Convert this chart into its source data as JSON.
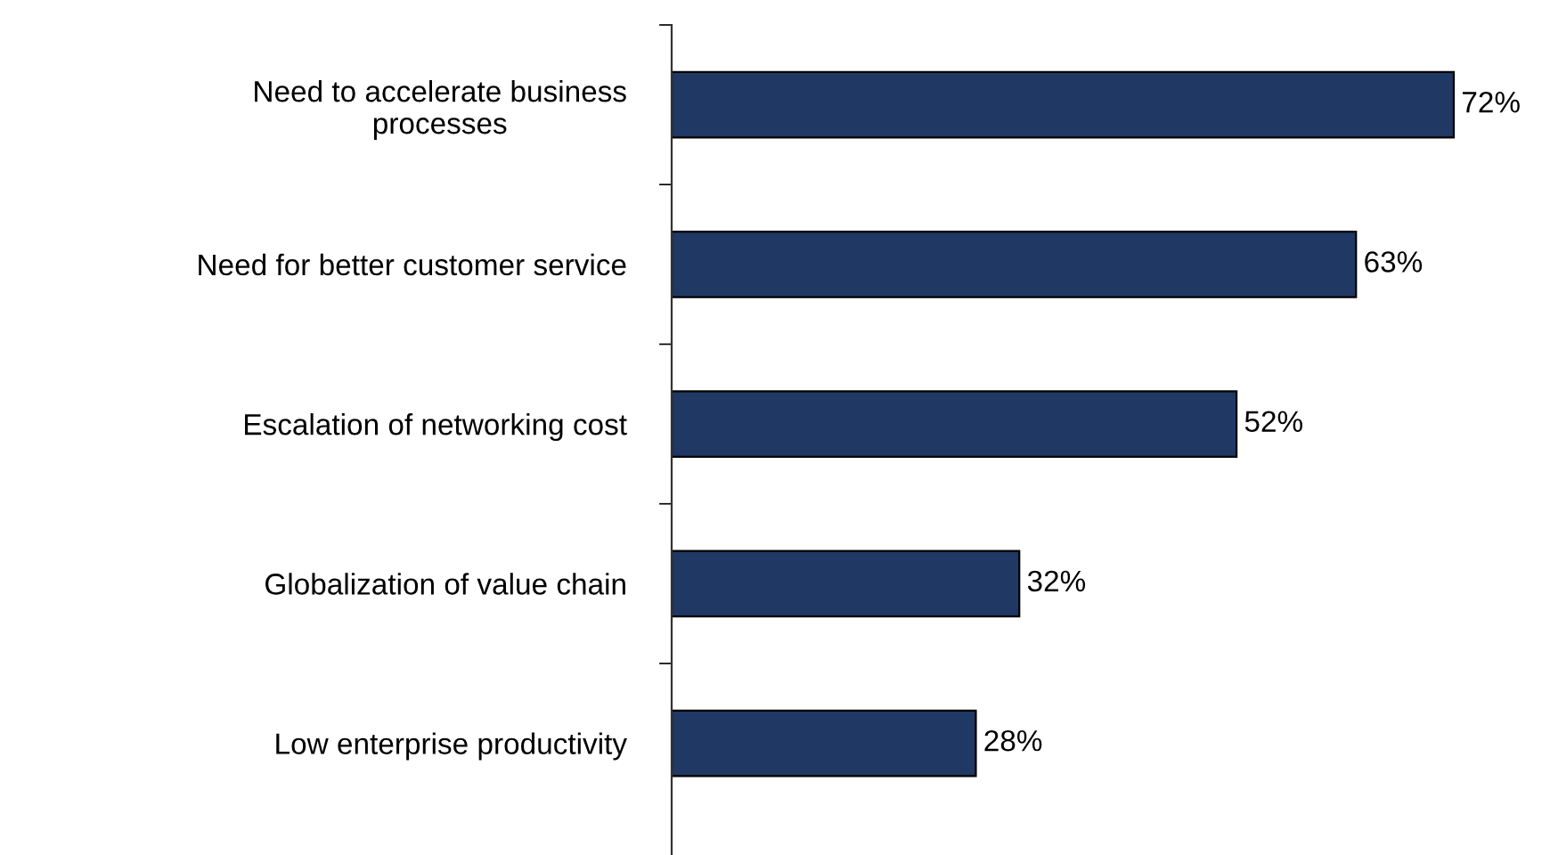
{
  "chart_data": {
    "type": "bar",
    "orientation": "horizontal",
    "categories": [
      "Need to accelerate business\nprocesses",
      "Need for better customer service",
      "Escalation of networking cost",
      "Globalization of value chain",
      "Low enterprise productivity"
    ],
    "values": [
      72,
      63,
      52,
      32,
      28
    ],
    "value_labels": [
      "72%",
      "63%",
      "52%",
      "32%",
      "28%"
    ],
    "color": "#1f3864"
  }
}
